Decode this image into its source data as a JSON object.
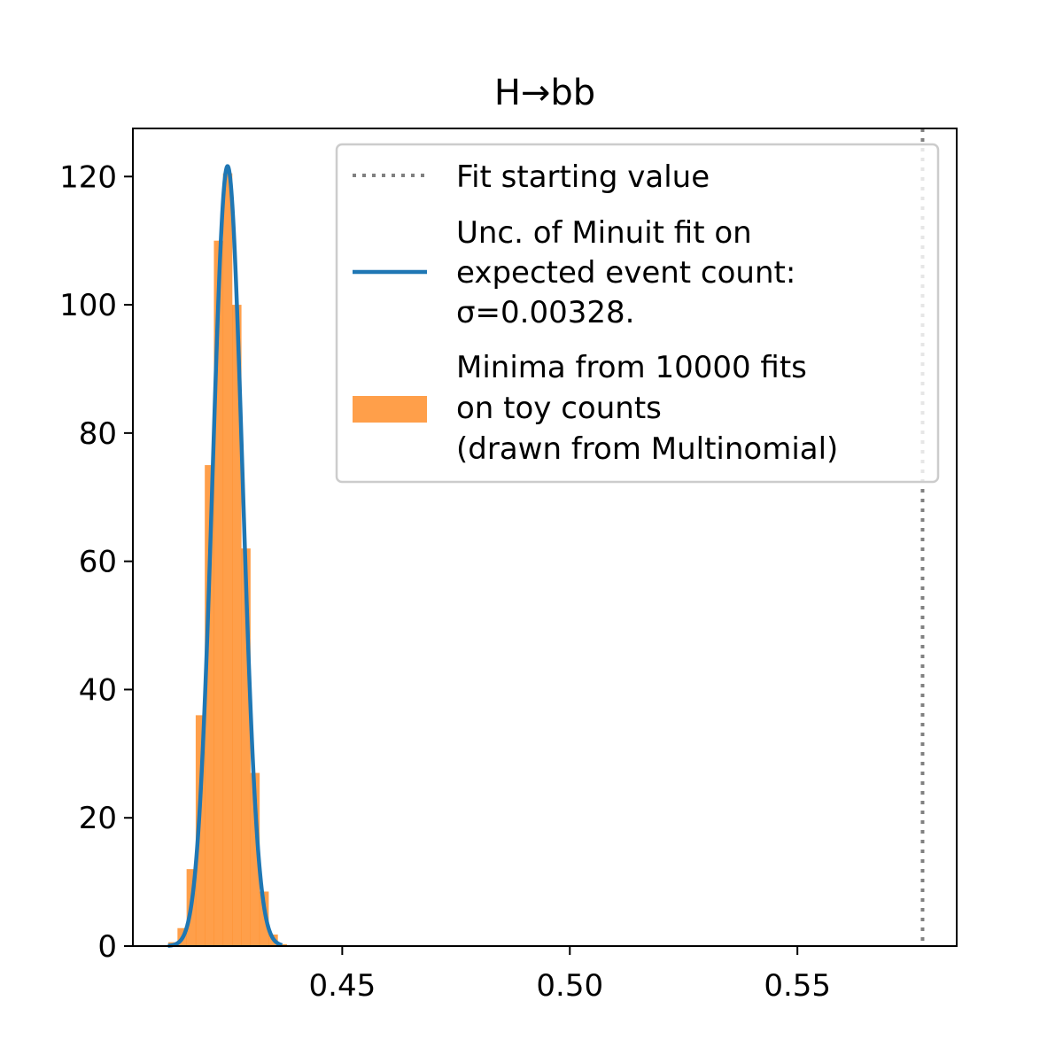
{
  "chart_data": {
    "type": "histogram",
    "title": "H→bb",
    "xlabel": "",
    "ylabel": "",
    "xlim": [
      0.404,
      0.585
    ],
    "ylim": [
      0,
      127.5
    ],
    "x_ticks": [
      0.45,
      0.5,
      0.55
    ],
    "x_tick_labels": [
      "0.45",
      "0.50",
      "0.55"
    ],
    "y_ticks": [
      0,
      20,
      40,
      60,
      80,
      100,
      120
    ],
    "y_tick_labels": [
      "0",
      "20",
      "40",
      "60",
      "80",
      "100",
      "120"
    ],
    "grid": false,
    "legend_position": "top-right",
    "fit_starting_value": 0.5775,
    "gaussian": {
      "mean": 0.4248,
      "sigma": 0.00328,
      "x_min": 0.4117,
      "x_max": 0.4368
    },
    "histogram": {
      "bin_edges": [
        0.4118,
        0.4138,
        0.4158,
        0.4178,
        0.4198,
        0.4218,
        0.4238,
        0.4258,
        0.4278,
        0.4298,
        0.4318,
        0.4338,
        0.4358,
        0.4378
      ],
      "values": [
        0.6,
        2.8,
        12.0,
        36.0,
        75.0,
        110.0,
        120.5,
        100.0,
        62.0,
        27.0,
        8.5,
        1.8,
        0.3
      ]
    },
    "series": [
      {
        "name": "Fit starting value",
        "style": "dotted",
        "color": "#808080"
      },
      {
        "name": "Unc. of Minuit fit on\nexpected event count:\nσ=0.00328.",
        "style": "line",
        "color": "#1f77b4"
      },
      {
        "name": "Minima from 10000 fits\non toy counts\n(drawn from Multinomial)",
        "style": "bar",
        "color": "#ff7f0e"
      }
    ],
    "legend": {
      "entries": [
        {
          "lines": [
            "Fit starting value"
          ]
        },
        {
          "lines": [
            "Unc. of Minuit fit on",
            "expected event count:",
            "σ=0.00328."
          ]
        },
        {
          "lines": [
            "Minima from 10000 fits",
            "on toy counts",
            "(drawn from Multinomial)"
          ]
        }
      ]
    }
  }
}
